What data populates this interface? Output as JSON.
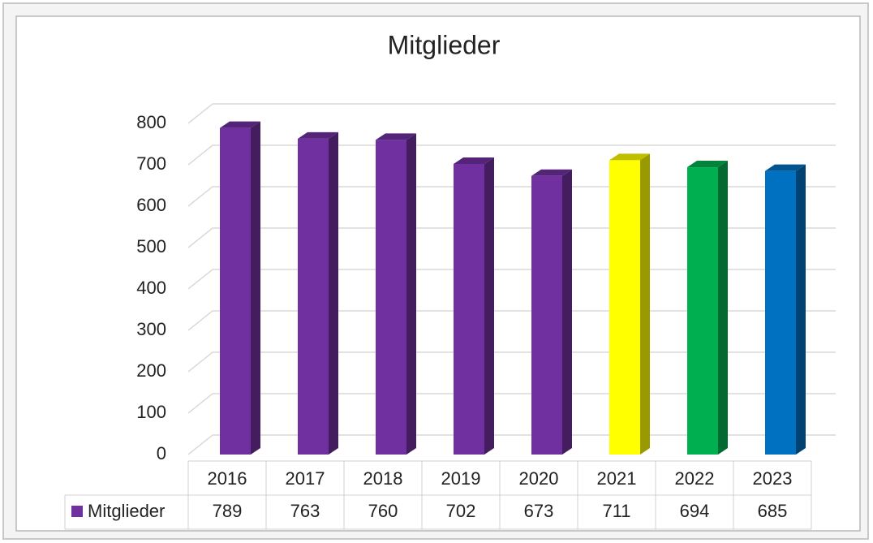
{
  "chart_data": {
    "type": "bar3d",
    "title": "Mitglieder",
    "categories": [
      "2016",
      "2017",
      "2018",
      "2019",
      "2020",
      "2021",
      "2022",
      "2023"
    ],
    "series": [
      {
        "name": "Mitglieder",
        "color": "#7030a0",
        "point_colors": [
          "#7030a0",
          "#7030a0",
          "#7030a0",
          "#7030a0",
          "#7030a0",
          "#ffff00",
          "#00b050",
          "#0070c0"
        ],
        "values": [
          789,
          763,
          760,
          702,
          673,
          711,
          694,
          685
        ]
      }
    ],
    "ylim": [
      0,
      800
    ],
    "yticks": [
      0,
      100,
      200,
      300,
      400,
      500,
      600,
      700,
      800
    ],
    "grid": true,
    "data_table": true
  }
}
